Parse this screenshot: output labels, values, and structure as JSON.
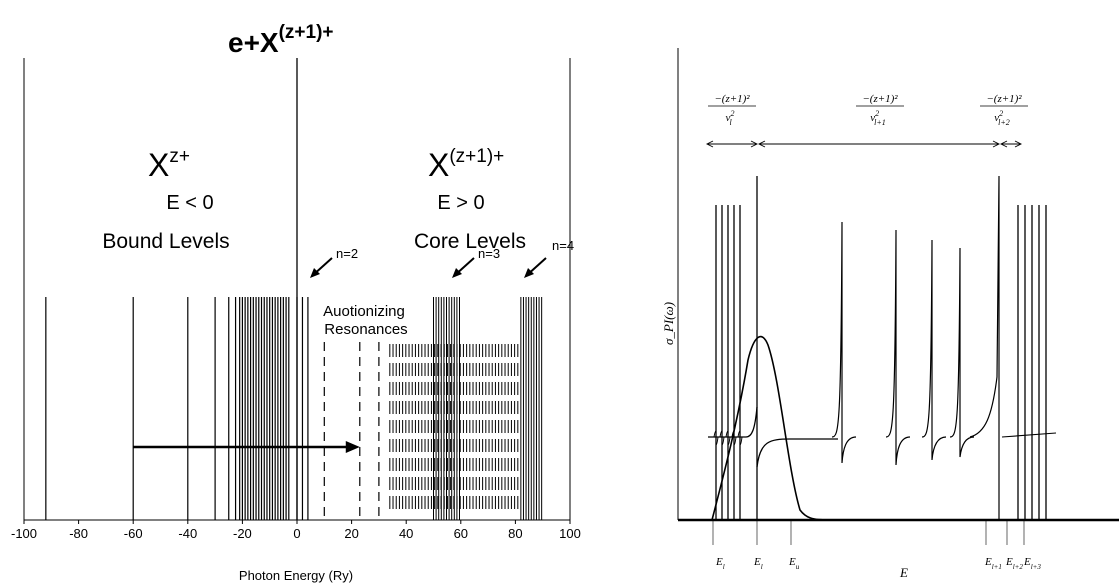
{
  "left_panel": {
    "title": {
      "base": "e+X",
      "sup": "(z+1)+"
    },
    "bound": {
      "symbol": "X",
      "sup": "z+",
      "energy": "E < 0",
      "label": "Bound Levels"
    },
    "core": {
      "symbol": "X",
      "sup": "(z+1)+",
      "energy": "E > 0",
      "label": "Core Levels"
    },
    "autoionizing": {
      "line1": "Auotionizing",
      "line2": "Resonances"
    },
    "series_labels": [
      "n=2",
      "n=3",
      "n=4"
    ],
    "xaxis": {
      "label": "Photon Energy (Ry)",
      "min": -100,
      "max": 100,
      "ticks": [
        -100,
        -80,
        -60,
        -40,
        -20,
        0,
        20,
        40,
        60,
        80,
        100
      ]
    },
    "bound_levels_ry": [
      -92,
      -60,
      -40,
      -30,
      -25,
      -22.5,
      -21,
      -20,
      -19,
      -18,
      -17,
      -16,
      -15,
      -14,
      -13,
      -12,
      -11,
      -10,
      -9,
      -8,
      -7,
      -6,
      -5,
      -4,
      -3
    ],
    "series_limits_ry": [
      0,
      2,
      4
    ],
    "dashed_levels_ry": [
      10,
      23,
      30
    ],
    "n3_cluster_ry": [
      50,
      60
    ],
    "n4_cluster_ry": [
      82,
      90
    ],
    "resonance_band_ry": [
      34,
      82
    ],
    "transition_arrow_ry": [
      -60,
      23
    ]
  },
  "right_panel": {
    "ylabel": "σ_PI(ω)",
    "xlabel": "E",
    "intervals": [
      {
        "numerator": "−(z+1)²",
        "denominator": "ν",
        "sub": "l",
        "sup": "2"
      },
      {
        "numerator": "−(z+1)²",
        "denominator": "ν",
        "sub": "l+1",
        "sup": "2"
      },
      {
        "numerator": "−(z+1)²",
        "denominator": "ν",
        "sub": "l+2",
        "sup": "2"
      }
    ],
    "x_ticks": [
      {
        "main": "E",
        "sub": "l"
      },
      {
        "main": "E",
        "sub": "l"
      },
      {
        "main": "E",
        "sub": "u"
      },
      {
        "main": "E",
        "sub": "l+1"
      },
      {
        "main": "E",
        "sub": "l+2"
      },
      {
        "main": "E",
        "sub": "l+3"
      }
    ]
  }
}
